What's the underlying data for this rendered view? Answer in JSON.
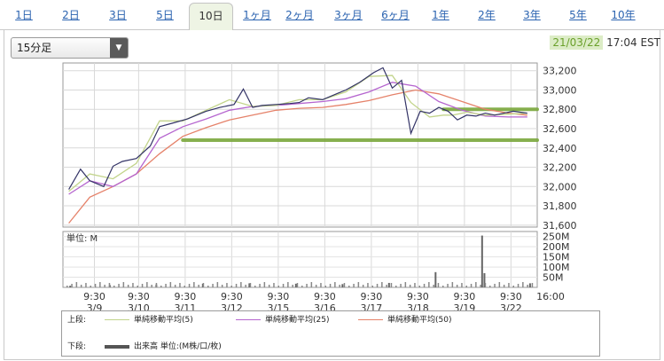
{
  "tabs": [
    {
      "label": "1日",
      "active": false
    },
    {
      "label": "2日",
      "active": false
    },
    {
      "label": "3日",
      "active": false
    },
    {
      "label": "5日",
      "active": false
    },
    {
      "label": "10日",
      "active": true
    },
    {
      "label": "1ヶ月",
      "active": false
    },
    {
      "label": "2ヶ月",
      "active": false
    },
    {
      "label": "3ヶ月",
      "active": false
    },
    {
      "label": "6ヶ月",
      "active": false
    },
    {
      "label": "1年",
      "active": false
    },
    {
      "label": "2年",
      "active": false
    },
    {
      "label": "3年",
      "active": false
    },
    {
      "label": "5年",
      "active": false
    },
    {
      "label": "10年",
      "active": false
    }
  ],
  "interval_select": {
    "value": "15分足"
  },
  "timestamp": {
    "date": "21/03/22",
    "time": "17:04 EST"
  },
  "legend": {
    "upper_label": "上段:",
    "lower_label": "下段:",
    "items": [
      {
        "label": "単純移動平均(5)",
        "color": "#c2d48b"
      },
      {
        "label": "単純移動平均(25)",
        "color": "#b565cf"
      },
      {
        "label": "単純移動平均(50)",
        "color": "#e5826a"
      }
    ],
    "volume_item": {
      "label": "出来高 単位:(M株/口/枚)",
      "color": "#555555"
    }
  },
  "chart_data": {
    "type": "line",
    "price": {
      "y_ticks": [
        31600,
        31800,
        32000,
        32200,
        32400,
        32600,
        32800,
        33000,
        33200
      ],
      "y_tick_labels": [
        "31,600",
        "31,800",
        "32,000",
        "32,200",
        "32,400",
        "32,600",
        "32,800",
        "33,000",
        "33,200"
      ],
      "ylim": [
        31580,
        33280
      ],
      "x_range": [
        0,
        10
      ],
      "series": [
        {
          "name": "単純移動平均(5)",
          "color": "#c2d48b",
          "x": [
            0.05,
            0.5,
            1,
            1.5,
            2,
            2.5,
            3,
            3.5,
            4,
            4.5,
            5,
            5.5,
            6,
            6.5,
            7,
            7.4,
            7.8,
            8.1,
            8.3,
            8.6,
            9,
            9.5,
            9.9
          ],
          "y": [
            31950,
            32130,
            32080,
            32240,
            32680,
            32680,
            32790,
            32900,
            32830,
            32840,
            32900,
            32900,
            32980,
            33140,
            33150,
            32870,
            32720,
            32740,
            32740,
            32770,
            32740,
            32750,
            32760
          ]
        },
        {
          "name": "単純移動平均(25)",
          "color": "#b565cf",
          "x": [
            0.05,
            0.5,
            1,
            1.5,
            2,
            2.5,
            3,
            3.5,
            4,
            4.5,
            5,
            5.5,
            6,
            6.5,
            7,
            7.5,
            8,
            8.5,
            9,
            9.5,
            9.9
          ],
          "y": [
            31920,
            32060,
            32000,
            32130,
            32500,
            32620,
            32700,
            32790,
            32830,
            32840,
            32860,
            32880,
            32910,
            32980,
            33080,
            33040,
            32880,
            32790,
            32730,
            32720,
            32720
          ]
        },
        {
          "name": "単純移動平均(50)",
          "color": "#e5826a",
          "x": [
            0.05,
            0.5,
            1,
            1.5,
            2,
            2.5,
            3,
            3.5,
            4,
            4.5,
            5,
            5.5,
            6,
            6.5,
            7,
            7.5,
            8,
            8.5,
            9,
            9.5,
            9.9
          ],
          "y": [
            31620,
            31890,
            32000,
            32130,
            32340,
            32520,
            32610,
            32690,
            32740,
            32790,
            32810,
            32820,
            32850,
            32890,
            32950,
            33000,
            32960,
            32880,
            32800,
            32760,
            32740
          ]
        },
        {
          "name": "price",
          "color": "#333366",
          "x": [
            0.05,
            0.3,
            0.5,
            0.8,
            1,
            1.2,
            1.5,
            1.8,
            2,
            2.3,
            2.6,
            3,
            3.3,
            3.6,
            3.8,
            4,
            4.2,
            4.5,
            4.8,
            5,
            5.2,
            5.5,
            5.8,
            6,
            6.3,
            6.6,
            6.8,
            7,
            7.2,
            7.4,
            7.6,
            7.8,
            8,
            8.2,
            8.4,
            8.6,
            8.8,
            9,
            9.2,
            9.4,
            9.6,
            9.9
          ],
          "y": [
            31970,
            32180,
            32060,
            32000,
            32210,
            32260,
            32290,
            32420,
            32620,
            32660,
            32700,
            32780,
            32820,
            32850,
            33010,
            32820,
            32840,
            32850,
            32860,
            32870,
            32920,
            32900,
            32960,
            33000,
            33080,
            33180,
            33230,
            33020,
            33100,
            32550,
            32780,
            32760,
            32820,
            32780,
            32690,
            32740,
            32730,
            32760,
            32740,
            32760,
            32780,
            32760
          ]
        }
      ],
      "volume_series_label": "",
      "support_lines": [
        {
          "y": 32800,
          "x_from": 8.1,
          "x_to": 10.2
        },
        {
          "y": 32480,
          "x_from": 2.5,
          "x_to": 10.6
        }
      ]
    },
    "volume": {
      "unit_label": "単位: M",
      "y_ticks": [
        50,
        100,
        150,
        200,
        250
      ],
      "y_tick_labels": [
        "50M",
        "100M",
        "150M",
        "200M",
        "250M"
      ],
      "ylim": [
        0,
        275
      ],
      "spikes": [
        {
          "x": 0.08,
          "v": 8
        },
        {
          "x": 0.93,
          "v": 12
        },
        {
          "x": 1.93,
          "v": 14
        },
        {
          "x": 2.93,
          "v": 18
        },
        {
          "x": 3.93,
          "v": 20
        },
        {
          "x": 4.93,
          "v": 18
        },
        {
          "x": 5.93,
          "v": 16
        },
        {
          "x": 6.93,
          "v": 22
        },
        {
          "x": 7.93,
          "v": 75
        },
        {
          "x": 8.93,
          "v": 255
        },
        {
          "x": 8.98,
          "v": 70
        },
        {
          "x": 9.96,
          "v": 20
        }
      ]
    },
    "x_ticks": [
      {
        "x": 0.6,
        "time": "9:30",
        "date": "3/9"
      },
      {
        "x": 1.55,
        "time": "9:30",
        "date": "3/10"
      },
      {
        "x": 2.55,
        "time": "9:30",
        "date": "3/11"
      },
      {
        "x": 3.55,
        "time": "9:30",
        "date": "3/12"
      },
      {
        "x": 4.55,
        "time": "9:30",
        "date": "3/15"
      },
      {
        "x": 5.55,
        "time": "9:30",
        "date": "3/16"
      },
      {
        "x": 6.55,
        "time": "9:30",
        "date": "3/17"
      },
      {
        "x": 7.55,
        "time": "9:30",
        "date": "3/18"
      },
      {
        "x": 8.55,
        "time": "9:30",
        "date": "3/19"
      },
      {
        "x": 9.55,
        "time": "9:30",
        "date": "3/22"
      },
      {
        "x": 10.4,
        "time": "16:00",
        "date": ""
      }
    ]
  }
}
